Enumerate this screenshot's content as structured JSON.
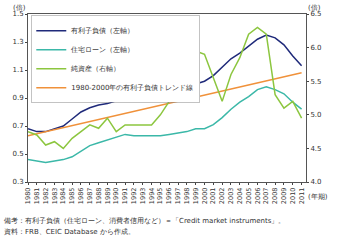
{
  "chart_data": {
    "type": "line",
    "ylabel": "(倍)",
    "y2label": "(倍)",
    "xlabel": "(年期)",
    "notes": [
      "備考：有利子負債（住宅ローン、消費者信用など）＝「Credit market instruments」。",
      "資料：FRB、CEIC Database から作成。"
    ],
    "x": [
      1980,
      1981,
      1982,
      1983,
      1984,
      1985,
      1986,
      1987,
      1988,
      1989,
      1990,
      1991,
      1992,
      1993,
      1994,
      1995,
      1996,
      1997,
      1998,
      1999,
      2000,
      2001,
      2002,
      2003,
      2004,
      2005,
      2006,
      2007,
      2008,
      2009,
      2010,
      2011
    ],
    "xlim": [
      1980,
      2011.5
    ],
    "xticks": [
      1980,
      1981,
      1982,
      1983,
      1984,
      1985,
      1986,
      1987,
      1988,
      1989,
      1990,
      1991,
      1992,
      1993,
      1994,
      1995,
      1996,
      1997,
      1998,
      1999,
      2000,
      2001,
      2002,
      2003,
      2004,
      2005,
      2006,
      2007,
      2008,
      2009,
      2010,
      2011
    ],
    "ylim": [
      0.3,
      1.5
    ],
    "yticks": [
      0.3,
      0.5,
      0.7,
      0.9,
      1.1,
      1.3,
      1.5
    ],
    "y2lim": [
      4,
      6.5
    ],
    "y2ticks": [
      {
        "value": 4,
        "label": "4.0"
      },
      4.5,
      {
        "value": 5,
        "label": "5.0"
      },
      5.5,
      {
        "value": 6,
        "label": "6.0"
      },
      6.5
    ],
    "grid": false,
    "legend": "upper left",
    "series": [
      {
        "name": "有利子負債（左軸）",
        "color": "#1f2a7a",
        "values": [
          0.68,
          0.66,
          0.66,
          0.68,
          0.7,
          0.75,
          0.8,
          0.83,
          0.85,
          0.86,
          0.88,
          0.89,
          0.88,
          0.88,
          0.9,
          0.91,
          0.93,
          0.95,
          0.97,
          1.0,
          1.02,
          1.06,
          1.12,
          1.18,
          1.22,
          1.27,
          1.32,
          1.35,
          1.33,
          1.28,
          1.2,
          1.13
        ]
      },
      {
        "name": "住宅ローン（左軸）",
        "color": "#3bb8a8",
        "values": [
          0.46,
          0.45,
          0.44,
          0.45,
          0.46,
          0.48,
          0.52,
          0.56,
          0.58,
          0.6,
          0.62,
          0.64,
          0.63,
          0.63,
          0.63,
          0.63,
          0.64,
          0.65,
          0.66,
          0.68,
          0.68,
          0.71,
          0.76,
          0.82,
          0.87,
          0.91,
          0.96,
          0.98,
          0.96,
          0.93,
          0.87,
          0.82
        ]
      },
      {
        "name": "純資産（右軸）",
        "color": "#8cc63f",
        "axis": "y2",
        "values": [
          4.75,
          4.7,
          4.55,
          4.6,
          4.5,
          4.65,
          4.75,
          4.85,
          4.8,
          4.95,
          4.75,
          4.85,
          4.85,
          4.85,
          4.85,
          5.0,
          5.2,
          5.45,
          5.6,
          5.95,
          5.9,
          5.55,
          5.2,
          5.6,
          5.85,
          6.2,
          6.3,
          6.2,
          5.3,
          5.1,
          5.2,
          4.95
        ]
      },
      {
        "name": "1980-2000年の有利子負債トレンド線",
        "color": "#f0913a",
        "x": [
          1980,
          2011
        ],
        "values": [
          0.63,
          1.08
        ]
      }
    ]
  }
}
